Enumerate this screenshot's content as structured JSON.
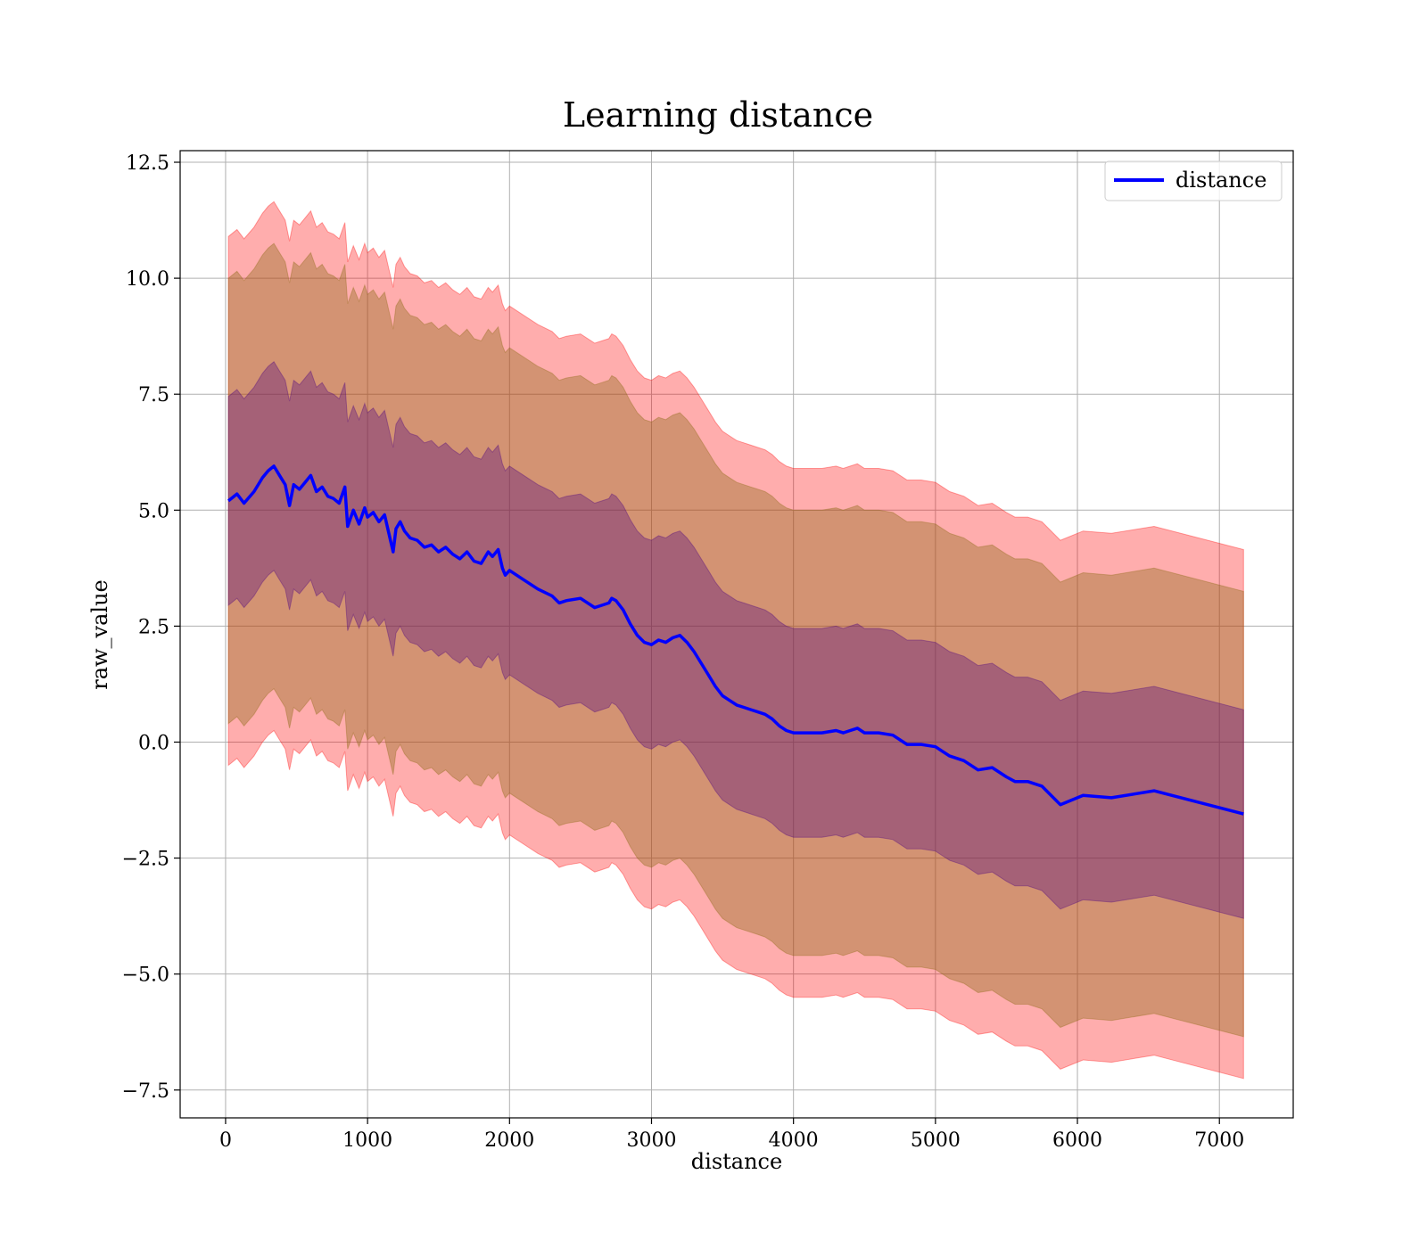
{
  "chart_data": {
    "type": "line",
    "title": "Learning distance",
    "xlabel": "distance",
    "ylabel": "raw_value",
    "xlim": [
      -320,
      7520
    ],
    "ylim": [
      -8.1,
      12.75
    ],
    "xticks": [
      0,
      1000,
      2000,
      3000,
      4000,
      5000,
      6000,
      7000
    ],
    "xtick_labels": [
      "0",
      "1000",
      "2000",
      "3000",
      "4000",
      "5000",
      "6000",
      "7000"
    ],
    "yticks": [
      -7.5,
      -5.0,
      -2.5,
      0.0,
      2.5,
      5.0,
      7.5,
      10.0,
      12.5
    ],
    "ytick_labels": [
      "−7.5",
      "−5.0",
      "−2.5",
      "0.0",
      "2.5",
      "5.0",
      "7.5",
      "10.0",
      "12.5"
    ],
    "grid": true,
    "legend_position": "upper-right",
    "colors": {
      "line": "#0000ff",
      "band_outer": "#ff0000",
      "band_middle": "#8b6914",
      "band_inner": "#4b0082"
    },
    "series": [
      {
        "name": "distance",
        "x": [
          20,
          80,
          130,
          200,
          260,
          300,
          340,
          380,
          420,
          450,
          480,
          520,
          560,
          600,
          640,
          680,
          720,
          760,
          800,
          840,
          860,
          900,
          940,
          980,
          1000,
          1040,
          1080,
          1120,
          1150,
          1180,
          1200,
          1230,
          1260,
          1300,
          1350,
          1400,
          1450,
          1500,
          1550,
          1600,
          1650,
          1700,
          1750,
          1800,
          1850,
          1880,
          1920,
          1950,
          1970,
          2000,
          2100,
          2200,
          2300,
          2350,
          2400,
          2500,
          2600,
          2650,
          2700,
          2720,
          2750,
          2800,
          2850,
          2900,
          2950,
          3000,
          3050,
          3100,
          3150,
          3200,
          3250,
          3300,
          3350,
          3400,
          3450,
          3500,
          3550,
          3600,
          3650,
          3700,
          3750,
          3800,
          3850,
          3900,
          3950,
          4000,
          4100,
          4200,
          4300,
          4350,
          4400,
          4450,
          4500,
          4600,
          4700,
          4800,
          4900,
          5000,
          5050,
          5100,
          5200,
          5300,
          5400,
          5500,
          5560,
          5650,
          5750,
          5880,
          6040,
          6240,
          6540,
          7170
        ],
        "y": [
          5.2,
          5.35,
          5.15,
          5.4,
          5.7,
          5.85,
          5.95,
          5.75,
          5.55,
          5.1,
          5.55,
          5.45,
          5.6,
          5.75,
          5.4,
          5.5,
          5.3,
          5.25,
          5.15,
          5.5,
          4.65,
          5.0,
          4.7,
          5.05,
          4.85,
          4.95,
          4.75,
          4.9,
          4.5,
          4.1,
          4.6,
          4.75,
          4.55,
          4.4,
          4.35,
          4.2,
          4.25,
          4.1,
          4.2,
          4.05,
          3.95,
          4.1,
          3.9,
          3.85,
          4.1,
          4.0,
          4.15,
          3.75,
          3.6,
          3.7,
          3.5,
          3.3,
          3.15,
          3.0,
          3.05,
          3.1,
          2.9,
          2.95,
          3.0,
          3.1,
          3.05,
          2.85,
          2.55,
          2.3,
          2.15,
          2.1,
          2.2,
          2.15,
          2.25,
          2.3,
          2.15,
          1.95,
          1.7,
          1.45,
          1.2,
          1.0,
          0.9,
          0.8,
          0.75,
          0.7,
          0.65,
          0.6,
          0.5,
          0.35,
          0.25,
          0.2,
          0.2,
          0.2,
          0.25,
          0.2,
          0.25,
          0.3,
          0.2,
          0.2,
          0.15,
          -0.05,
          -0.05,
          -0.1,
          -0.2,
          -0.3,
          -0.4,
          -0.6,
          -0.55,
          -0.75,
          -0.85,
          -0.85,
          -0.95,
          -1.35,
          -1.15,
          -1.2,
          -1.05,
          -1.55
        ]
      }
    ],
    "bands": [
      {
        "role": "outer",
        "offset_upper": 5.7,
        "offset_lower": 5.7
      },
      {
        "role": "middle",
        "offset_upper": 4.8,
        "offset_lower": 4.8
      },
      {
        "role": "inner",
        "offset_upper": 2.25,
        "offset_lower": 2.25
      }
    ]
  }
}
